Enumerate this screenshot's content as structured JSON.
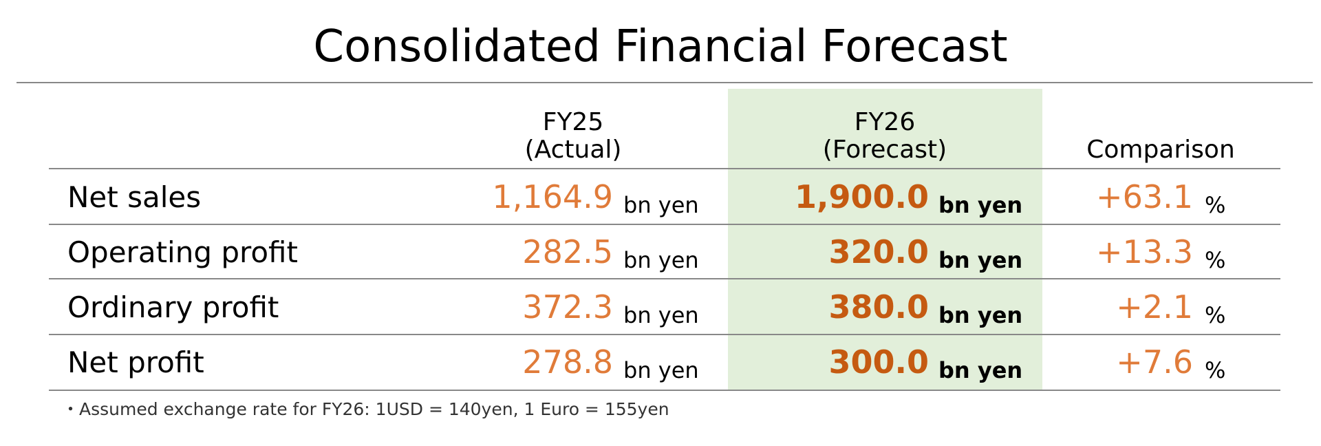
{
  "title": "Consolidated Financial Forecast",
  "header": {
    "actual": [
      "FY25",
      "(Actual)"
    ],
    "forecast": [
      "FY26",
      "(Forecast)"
    ],
    "comparison": "Comparison"
  },
  "rows": [
    {
      "label": "Net sales",
      "actual": {
        "value": "1,164.9",
        "unit": "bn yen"
      },
      "forecast": {
        "value": "1,900.0",
        "unit": "bn yen"
      },
      "comparison": {
        "value": "+63.1",
        "unit": "%"
      }
    },
    {
      "label": "Operating profit",
      "actual": {
        "value": "282.5",
        "unit": "bn yen"
      },
      "forecast": {
        "value": "320.0",
        "unit": "bn yen"
      },
      "comparison": {
        "value": "+13.3",
        "unit": "%"
      }
    },
    {
      "label": "Ordinary profit",
      "actual": {
        "value": "372.3",
        "unit": "bn yen"
      },
      "forecast": {
        "value": "380.0",
        "unit": "bn yen"
      },
      "comparison": {
        "value": "+2.1",
        "unit": "%"
      }
    },
    {
      "label": "Net profit",
      "actual": {
        "value": "278.8",
        "unit": "bn yen"
      },
      "forecast": {
        "value": "300.0",
        "unit": "bn yen"
      },
      "comparison": {
        "value": "+7.6",
        "unit": "%"
      }
    }
  ],
  "footnote": "・Assumed exchange rate for FY26: 1USD = 140yen, 1 Euro = 155yen"
}
